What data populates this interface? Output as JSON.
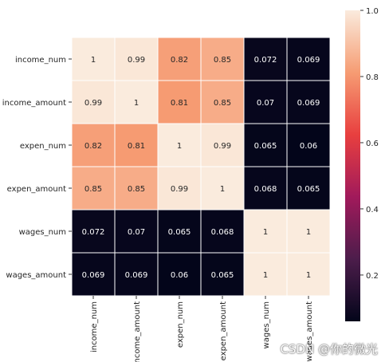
{
  "chart_data": {
    "type": "heatmap",
    "title": "",
    "xlabel": "",
    "ylabel": "",
    "rows": [
      "income_num",
      "income_amount",
      "expen_num",
      "expen_amount",
      "wages_num",
      "wages_amount"
    ],
    "columns": [
      "income_num",
      "income_amount",
      "expen_num",
      "expen_amount",
      "wages_num",
      "wages_amount"
    ],
    "values": [
      [
        1,
        0.99,
        0.82,
        0.85,
        0.072,
        0.069
      ],
      [
        0.99,
        1,
        0.81,
        0.85,
        0.07,
        0.069
      ],
      [
        0.82,
        0.81,
        1,
        0.99,
        0.065,
        0.06
      ],
      [
        0.85,
        0.85,
        0.99,
        1,
        0.068,
        0.065
      ],
      [
        0.072,
        0.07,
        0.065,
        0.068,
        1,
        1
      ],
      [
        0.069,
        0.069,
        0.06,
        0.065,
        1,
        1
      ]
    ],
    "colorbar": {
      "range": [
        0.06,
        1.0
      ],
      "ticks": [
        "1.0",
        "0.8",
        "0.6",
        "0.4",
        "0.2"
      ],
      "colormap": "rocket",
      "colors": [
        "#03051a",
        "#4c1d4b",
        "#a11a5b",
        "#e83f3f",
        "#f69c73",
        "#faebdd"
      ]
    },
    "grid_lines": "white",
    "annotations": true
  },
  "watermark": "CSDN @你的微光"
}
